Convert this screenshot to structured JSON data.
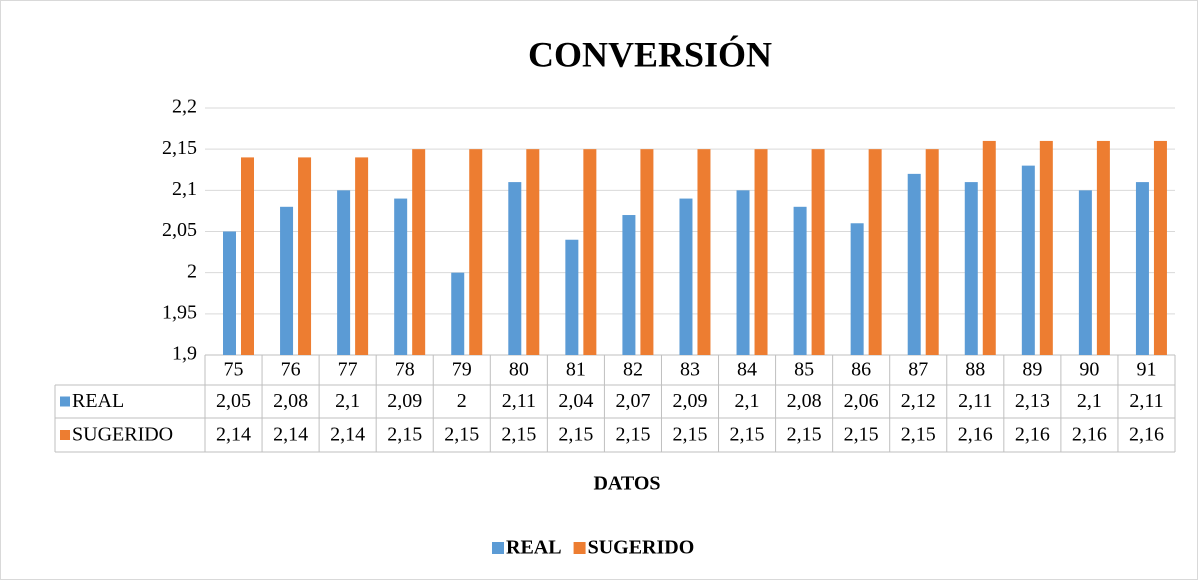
{
  "chart_data": {
    "type": "bar",
    "title": "CONVERSIÓN",
    "x_label": "DATOS",
    "categories": [
      "75",
      "76",
      "77",
      "78",
      "79",
      "80",
      "81",
      "82",
      "83",
      "84",
      "85",
      "86",
      "87",
      "88",
      "89",
      "90",
      "91"
    ],
    "series": [
      {
        "name": "REAL",
        "color": "#5b9bd5",
        "values": [
          2.05,
          2.08,
          2.1,
          2.09,
          2,
          2.11,
          2.04,
          2.07,
          2.09,
          2.1,
          2.08,
          2.06,
          2.12,
          2.11,
          2.13,
          2.1,
          2.11
        ],
        "value_labels": [
          "2,05",
          "2,08",
          "2,1",
          "2,09",
          "2",
          "2,11",
          "2,04",
          "2,07",
          "2,09",
          "2,1",
          "2,08",
          "2,06",
          "2,12",
          "2,11",
          "2,13",
          "2,1",
          "2,11"
        ]
      },
      {
        "name": "SUGERIDO",
        "color": "#ed7d31",
        "values": [
          2.14,
          2.14,
          2.14,
          2.15,
          2.15,
          2.15,
          2.15,
          2.15,
          2.15,
          2.15,
          2.15,
          2.15,
          2.15,
          2.16,
          2.16,
          2.16,
          2.16
        ],
        "value_labels": [
          "2,14",
          "2,14",
          "2,14",
          "2,15",
          "2,15",
          "2,15",
          "2,15",
          "2,15",
          "2,15",
          "2,15",
          "2,15",
          "2,15",
          "2,15",
          "2,16",
          "2,16",
          "2,16",
          "2,16"
        ]
      }
    ],
    "ylim": [
      1.9,
      2.2
    ],
    "yticks": [
      {
        "value": 1.9,
        "label": "1,9"
      },
      {
        "value": 1.95,
        "label": "1,95"
      },
      2,
      {
        "value": 2.05,
        "label": "2,05"
      },
      {
        "value": 2.1,
        "label": "2,1"
      },
      {
        "value": 2.15,
        "label": "2,15"
      },
      {
        "value": 2.2,
        "label": "2,2"
      }
    ],
    "grid": true,
    "legend": "bottom"
  }
}
